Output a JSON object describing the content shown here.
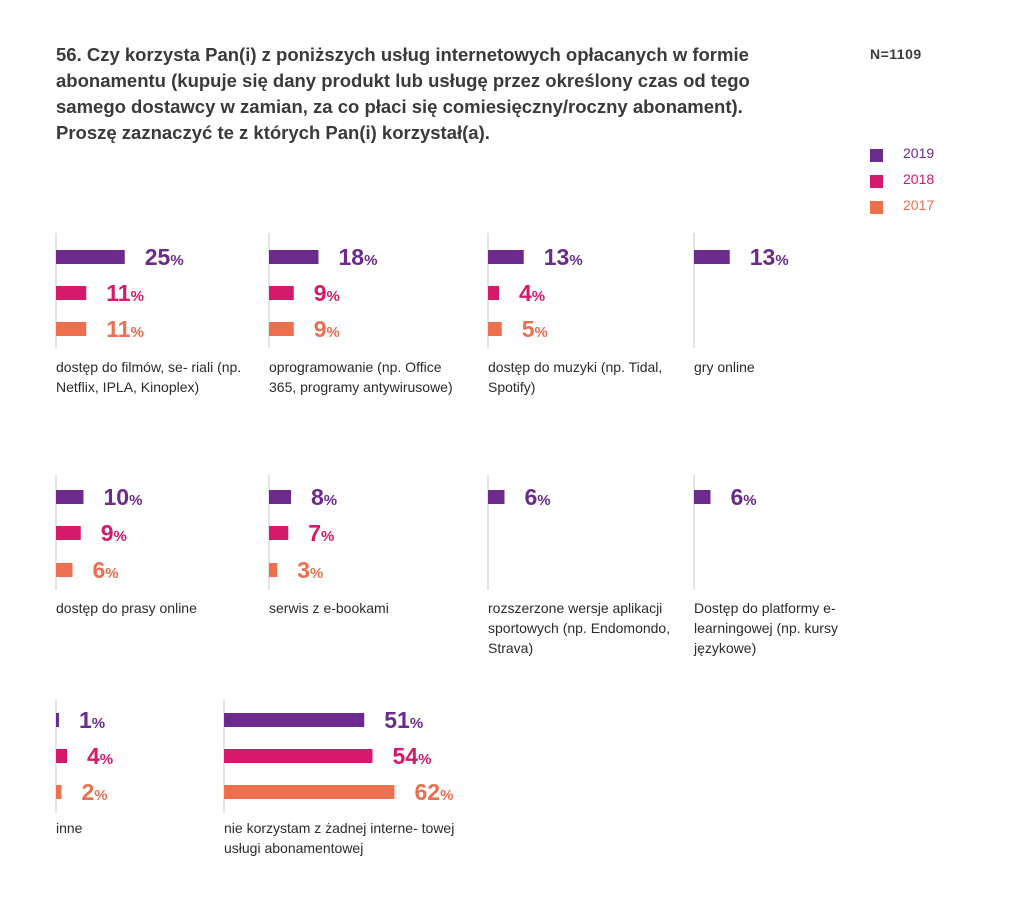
{
  "question": {
    "title": "56. Czy korzysta Pan(i) z poniższych usług internetowych opłacanych w formie abonamentu (kupuje się dany produkt lub usługę przez określony czas od tego samego dostawcy w zamian, za co płaci się comiesięczny/roczny abonament). Proszę zaznaczyć te z których Pan(i) korzystał(a).",
    "sample_size": "N=1109"
  },
  "legend": [
    {
      "label": "2019",
      "color": "#6b2a8c"
    },
    {
      "label": "2018",
      "color": "#d6196b"
    },
    {
      "label": "2017",
      "color": "#ec6f4e"
    }
  ],
  "chart_data": {
    "type": "bar",
    "orientation": "horizontal",
    "unit": "%",
    "series_names": [
      "2019",
      "2018",
      "2017"
    ],
    "groups": [
      {
        "label": "dostęp do filmów, se- riali (np. Netflix, IPLA, Kinoplex)",
        "values": [
          25,
          11,
          11
        ]
      },
      {
        "label": "oprogramowanie (np. Office 365, programy antywirusowe)",
        "values": [
          18,
          9,
          9
        ]
      },
      {
        "label": "dostęp do muzyki (np. Tidal, Spotify)",
        "values": [
          13,
          4,
          5
        ]
      },
      {
        "label": "gry online",
        "values": [
          13
        ]
      },
      {
        "label": "dostęp do prasy online",
        "values": [
          10,
          9,
          6
        ]
      },
      {
        "label": "serwis z e-bookami",
        "values": [
          8,
          7,
          3
        ]
      },
      {
        "label": "rozszerzone wersje aplikacji sportowych (np. Endomondo, Strava)",
        "values": [
          6
        ]
      },
      {
        "label": "Dostęp do platformy e-learningowej (np. kursy językowe)",
        "values": [
          6
        ]
      },
      {
        "label": "inne",
        "values": [
          1,
          4,
          2
        ]
      },
      {
        "label": "nie korzystam z żadnej interne- towej usługi abonamentowej",
        "values": [
          51,
          54,
          62
        ]
      }
    ]
  }
}
